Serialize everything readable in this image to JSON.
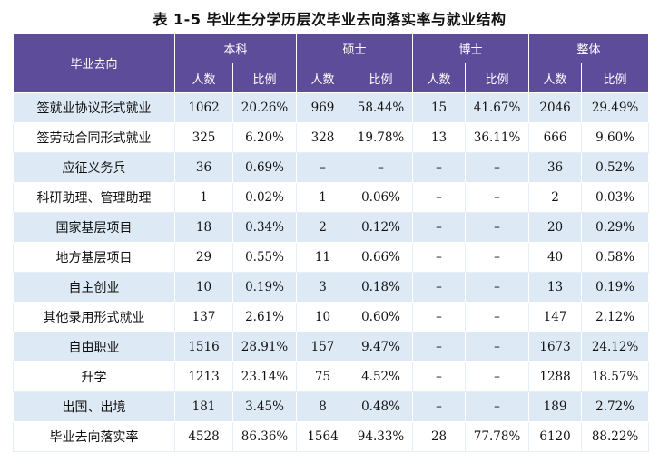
{
  "title": "表 1-5   毕业生分学历层次毕业去向落实率与就业结构",
  "header": {
    "row_label": "毕业去向",
    "groups": [
      "本科",
      "硕士",
      "博士",
      "整体"
    ],
    "sub": [
      "人数",
      "比例"
    ]
  },
  "rows": [
    {
      "label": "签就业协议形式就业",
      "cells": [
        "1062",
        "20.26%",
        "969",
        "58.44%",
        "15",
        "41.67%",
        "2046",
        "29.49%"
      ]
    },
    {
      "label": "签劳动合同形式就业",
      "cells": [
        "325",
        "6.20%",
        "328",
        "19.78%",
        "13",
        "36.11%",
        "666",
        "9.60%"
      ]
    },
    {
      "label": "应征义务兵",
      "cells": [
        "36",
        "0.69%",
        "–",
        "–",
        "–",
        "–",
        "36",
        "0.52%"
      ]
    },
    {
      "label": "科研助理、管理助理",
      "cells": [
        "1",
        "0.02%",
        "1",
        "0.06%",
        "–",
        "–",
        "2",
        "0.03%"
      ]
    },
    {
      "label": "国家基层项目",
      "cells": [
        "18",
        "0.34%",
        "2",
        "0.12%",
        "–",
        "–",
        "20",
        "0.29%"
      ]
    },
    {
      "label": "地方基层项目",
      "cells": [
        "29",
        "0.55%",
        "11",
        "0.66%",
        "–",
        "–",
        "40",
        "0.58%"
      ]
    },
    {
      "label": "自主创业",
      "cells": [
        "10",
        "0.19%",
        "3",
        "0.18%",
        "–",
        "–",
        "13",
        "0.19%"
      ]
    },
    {
      "label": "其他录用形式就业",
      "cells": [
        "137",
        "2.61%",
        "10",
        "0.60%",
        "–",
        "–",
        "147",
        "2.12%"
      ]
    },
    {
      "label": "自由职业",
      "cells": [
        "1516",
        "28.91%",
        "157",
        "9.47%",
        "–",
        "–",
        "1673",
        "24.12%"
      ]
    },
    {
      "label": "升学",
      "cells": [
        "1213",
        "23.14%",
        "75",
        "4.52%",
        "–",
        "–",
        "1288",
        "18.57%"
      ]
    },
    {
      "label": "出国、出境",
      "cells": [
        "181",
        "3.45%",
        "8",
        "0.48%",
        "–",
        "–",
        "189",
        "2.72%"
      ]
    },
    {
      "label": "毕业去向落实率",
      "cells": [
        "4528",
        "86.36%",
        "1564",
        "94.33%",
        "28",
        "77.78%",
        "6120",
        "88.22%"
      ]
    }
  ]
}
